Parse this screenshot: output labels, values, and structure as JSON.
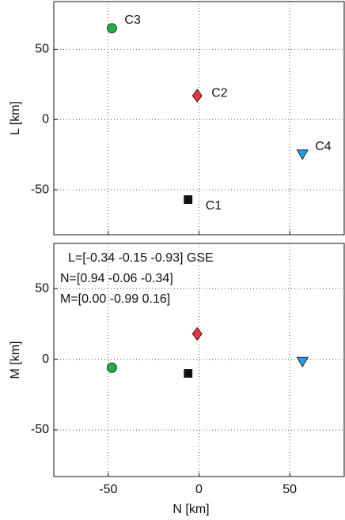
{
  "chart_data": [
    {
      "type": "scatter",
      "ylabel": "L [km]",
      "xlim": [
        -80,
        80
      ],
      "ylim": [
        -82,
        84
      ],
      "xticks": [
        -50,
        0,
        50
      ],
      "yticks": [
        -50,
        0,
        50
      ],
      "grid": true,
      "show_xtick_labels": false,
      "series": [
        {
          "name": "C1",
          "color": "#111111",
          "marker": "square",
          "x": [
            -6
          ],
          "y": [
            -57
          ]
        },
        {
          "name": "C2",
          "color": "#e8323c",
          "marker": "diamond",
          "x": [
            -1
          ],
          "y": [
            17
          ]
        },
        {
          "name": "C3",
          "color": "#1fae4a",
          "marker": "circle",
          "x": [
            -48
          ],
          "y": [
            65
          ]
        },
        {
          "name": "C4",
          "color": "#1e9ee0",
          "marker": "triangle-down",
          "x": [
            57
          ],
          "y": [
            -25
          ]
        }
      ]
    },
    {
      "type": "scatter",
      "ylabel": "M [km]",
      "xlabel": "N [km]",
      "xlim": [
        -80,
        80
      ],
      "ylim": [
        -83,
        82
      ],
      "xticks": [
        -50,
        0,
        50
      ],
      "yticks": [
        -50,
        0,
        50
      ],
      "grid": true,
      "show_xtick_labels": true,
      "annotations": [
        "L=[-0.34 -0.15 -0.93] GSE",
        "N=[0.94  -0.06 -0.34]",
        "M=[0.00  -0.99  0.16]"
      ],
      "series": [
        {
          "color": "#111111",
          "marker": "square",
          "x": [
            -6
          ],
          "y": [
            -10
          ]
        },
        {
          "color": "#e8323c",
          "marker": "diamond",
          "x": [
            -1
          ],
          "y": [
            18
          ]
        },
        {
          "color": "#1fae4a",
          "marker": "circle",
          "x": [
            -48
          ],
          "y": [
            -6
          ]
        },
        {
          "color": "#1e9ee0",
          "marker": "triangle-down",
          "x": [
            57
          ],
          "y": [
            -2
          ]
        }
      ]
    }
  ]
}
